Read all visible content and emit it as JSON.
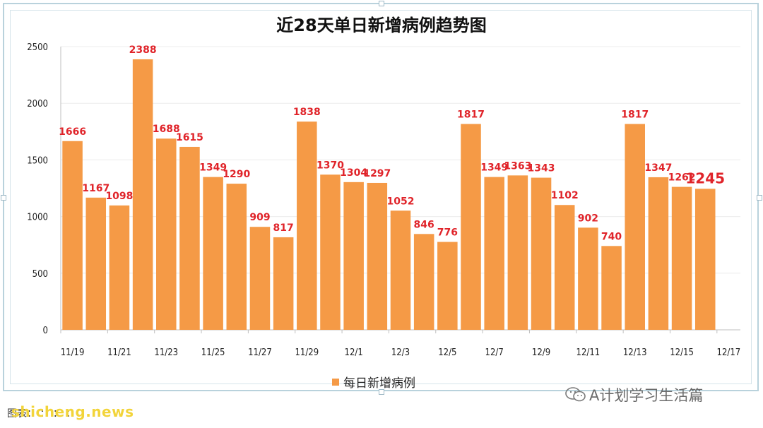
{
  "footer": {
    "caption": "图表：  ：  ：  ：",
    "site": "shicheng.news"
  },
  "watermark": {
    "text": "A计划学习生活篇"
  },
  "chart_data": {
    "type": "bar",
    "title": "近28天单日新增病例趋势图",
    "series": [
      {
        "name": "每日新增病例",
        "color": "#f59a46",
        "values": [
          1666,
          1167,
          1098,
          2388,
          1688,
          1615,
          1349,
          1290,
          909,
          817,
          1838,
          1370,
          1304,
          1297,
          1052,
          846,
          776,
          1817,
          1349,
          1363,
          1343,
          1102,
          902,
          740,
          1817,
          1347,
          1262,
          1245
        ]
      }
    ],
    "x_tick_labels": [
      "11/19",
      "11/21",
      "11/23",
      "11/25",
      "11/27",
      "11/29",
      "12/1",
      "12/3",
      "12/5",
      "12/7",
      "12/9",
      "12/11",
      "12/13",
      "12/15",
      "12/17"
    ],
    "y_ticks": [
      0,
      500,
      1000,
      1500,
      2000,
      2500
    ],
    "ylim": [
      0,
      2500
    ],
    "data_label_color": "#e0242a",
    "grid": true,
    "legend_position": "bottom"
  }
}
